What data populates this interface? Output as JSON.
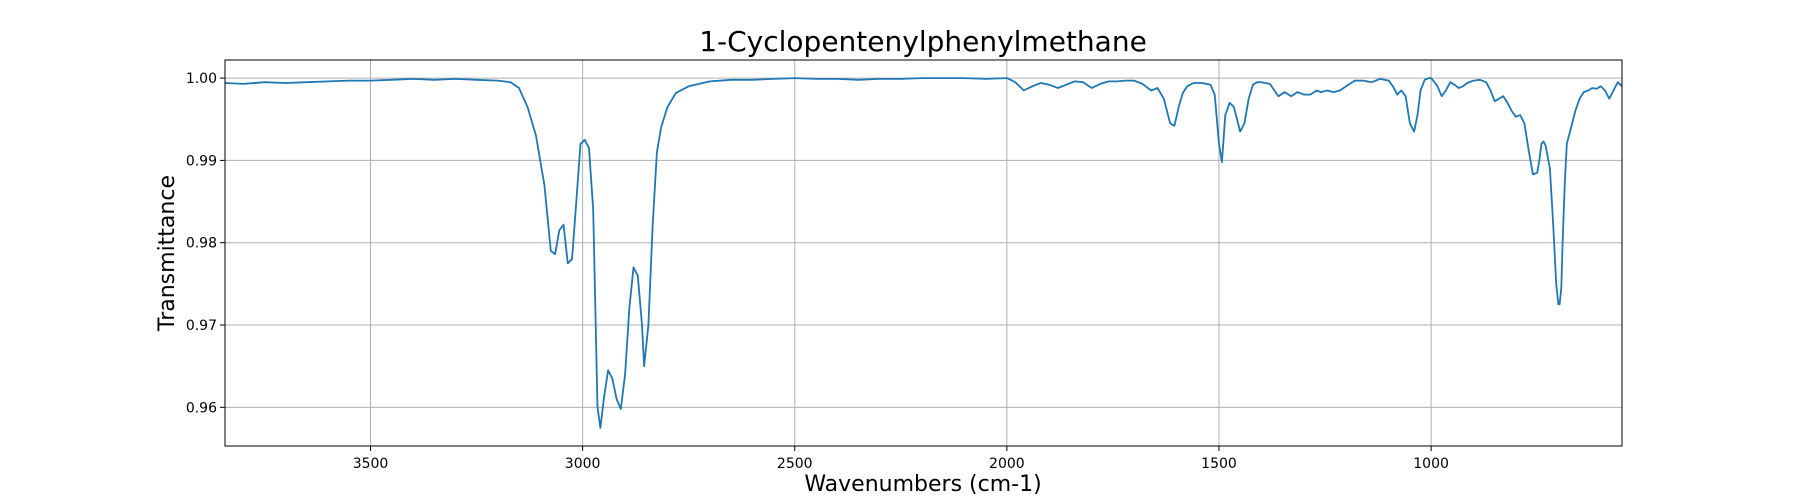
{
  "chart_data": {
    "type": "line",
    "title": "1-Cyclopentenylphenylmethane",
    "xlabel": "Wavenumbers (cm-1)",
    "ylabel": "Transmittance",
    "xlim": [
      3843,
      550
    ],
    "ylim": [
      0.9553,
      1.0022
    ],
    "x_reversed": true,
    "grid": true,
    "x_ticks": [
      {
        "value": 3500,
        "label": "3500"
      },
      {
        "value": 3000,
        "label": "3000"
      },
      {
        "value": 2500,
        "label": "2500"
      },
      {
        "value": 2000,
        "label": "2000"
      },
      {
        "value": 1500,
        "label": "1500"
      },
      {
        "value": 1000,
        "label": "1000"
      }
    ],
    "y_ticks": [
      {
        "value": 0.96,
        "label": "0.96"
      },
      {
        "value": 0.97,
        "label": "0.97"
      },
      {
        "value": 0.98,
        "label": "0.98"
      },
      {
        "value": 0.99,
        "label": "0.99"
      },
      {
        "value": 1.0,
        "label": "1.00"
      }
    ],
    "series": [
      {
        "color": "#1f77b4",
        "x": [
          3843,
          3800,
          3750,
          3700,
          3650,
          3600,
          3550,
          3500,
          3450,
          3400,
          3350,
          3300,
          3250,
          3200,
          3170,
          3150,
          3130,
          3110,
          3090,
          3075,
          3065,
          3055,
          3045,
          3035,
          3025,
          3015,
          3005,
          2995,
          2985,
          2975,
          2965,
          2958,
          2950,
          2940,
          2930,
          2920,
          2910,
          2900,
          2890,
          2880,
          2870,
          2860,
          2855,
          2845,
          2835,
          2825,
          2815,
          2800,
          2780,
          2750,
          2700,
          2650,
          2600,
          2550,
          2500,
          2450,
          2400,
          2350,
          2300,
          2250,
          2200,
          2150,
          2100,
          2050,
          2000,
          1980,
          1960,
          1940,
          1920,
          1900,
          1880,
          1860,
          1840,
          1820,
          1800,
          1780,
          1760,
          1740,
          1720,
          1700,
          1680,
          1660,
          1645,
          1630,
          1615,
          1605,
          1595,
          1585,
          1575,
          1560,
          1540,
          1520,
          1510,
          1500,
          1493,
          1485,
          1475,
          1465,
          1455,
          1450,
          1440,
          1430,
          1420,
          1410,
          1400,
          1380,
          1360,
          1345,
          1330,
          1315,
          1300,
          1285,
          1270,
          1260,
          1245,
          1230,
          1215,
          1200,
          1180,
          1160,
          1140,
          1120,
          1100,
          1090,
          1080,
          1070,
          1060,
          1050,
          1040,
          1032,
          1025,
          1015,
          1005,
          1000,
          995,
          985,
          975,
          965,
          955,
          945,
          935,
          925,
          915,
          900,
          885,
          870,
          860,
          850,
          840,
          830,
          820,
          810,
          800,
          790,
          780,
          770,
          760,
          750,
          745,
          740,
          735,
          730,
          720,
          712,
          705,
          700,
          697,
          693,
          690,
          685,
          680,
          670,
          660,
          650,
          640,
          630,
          620,
          610,
          600,
          590,
          580,
          570,
          560,
          550
        ],
        "y": [
          0.9994,
          0.9993,
          0.9995,
          0.9994,
          0.9995,
          0.9996,
          0.9997,
          0.9997,
          0.9998,
          0.9999,
          0.9998,
          0.9999,
          0.9998,
          0.9997,
          0.9995,
          0.9988,
          0.9965,
          0.993,
          0.987,
          0.979,
          0.9786,
          0.9815,
          0.9822,
          0.9775,
          0.978,
          0.985,
          0.992,
          0.9925,
          0.9915,
          0.984,
          0.96,
          0.9575,
          0.961,
          0.9645,
          0.9635,
          0.961,
          0.9598,
          0.964,
          0.972,
          0.977,
          0.976,
          0.97,
          0.965,
          0.97,
          0.982,
          0.991,
          0.994,
          0.9965,
          0.9982,
          0.999,
          0.9996,
          0.9998,
          0.9998,
          0.9999,
          1.0,
          0.9999,
          0.9999,
          0.9998,
          0.9999,
          0.9999,
          1.0,
          1.0,
          1.0,
          0.9999,
          1.0,
          0.9995,
          0.9985,
          0.999,
          0.9994,
          0.9992,
          0.9988,
          0.9992,
          0.9996,
          0.9995,
          0.9988,
          0.9993,
          0.9996,
          0.9996,
          0.9997,
          0.9997,
          0.9993,
          0.9985,
          0.9988,
          0.9975,
          0.9945,
          0.9942,
          0.9965,
          0.9982,
          0.999,
          0.9994,
          0.9994,
          0.9992,
          0.998,
          0.992,
          0.9898,
          0.9955,
          0.997,
          0.9965,
          0.9945,
          0.9935,
          0.9945,
          0.9975,
          0.9992,
          0.9995,
          0.9995,
          0.9993,
          0.9978,
          0.9983,
          0.9978,
          0.9983,
          0.998,
          0.998,
          0.9985,
          0.9983,
          0.9985,
          0.9983,
          0.9985,
          0.999,
          0.9997,
          0.9997,
          0.9995,
          0.9999,
          0.9997,
          0.999,
          0.998,
          0.9985,
          0.9978,
          0.9945,
          0.9935,
          0.9955,
          0.9985,
          0.9998,
          1.0,
          1.0,
          0.9997,
          0.999,
          0.9978,
          0.9985,
          0.9995,
          0.9992,
          0.9988,
          0.999,
          0.9994,
          0.9997,
          0.9998,
          0.9995,
          0.9985,
          0.9972,
          0.9975,
          0.9978,
          0.997,
          0.996,
          0.9953,
          0.9955,
          0.9945,
          0.9912,
          0.9883,
          0.9885,
          0.99,
          0.992,
          0.9923,
          0.9918,
          0.989,
          0.982,
          0.975,
          0.9725,
          0.9725,
          0.9745,
          0.98,
          0.987,
          0.992,
          0.994,
          0.996,
          0.9975,
          0.9983,
          0.9985,
          0.9988,
          0.9987,
          0.999,
          0.9985,
          0.9975,
          0.9985,
          0.9995,
          0.999
        ]
      }
    ]
  }
}
